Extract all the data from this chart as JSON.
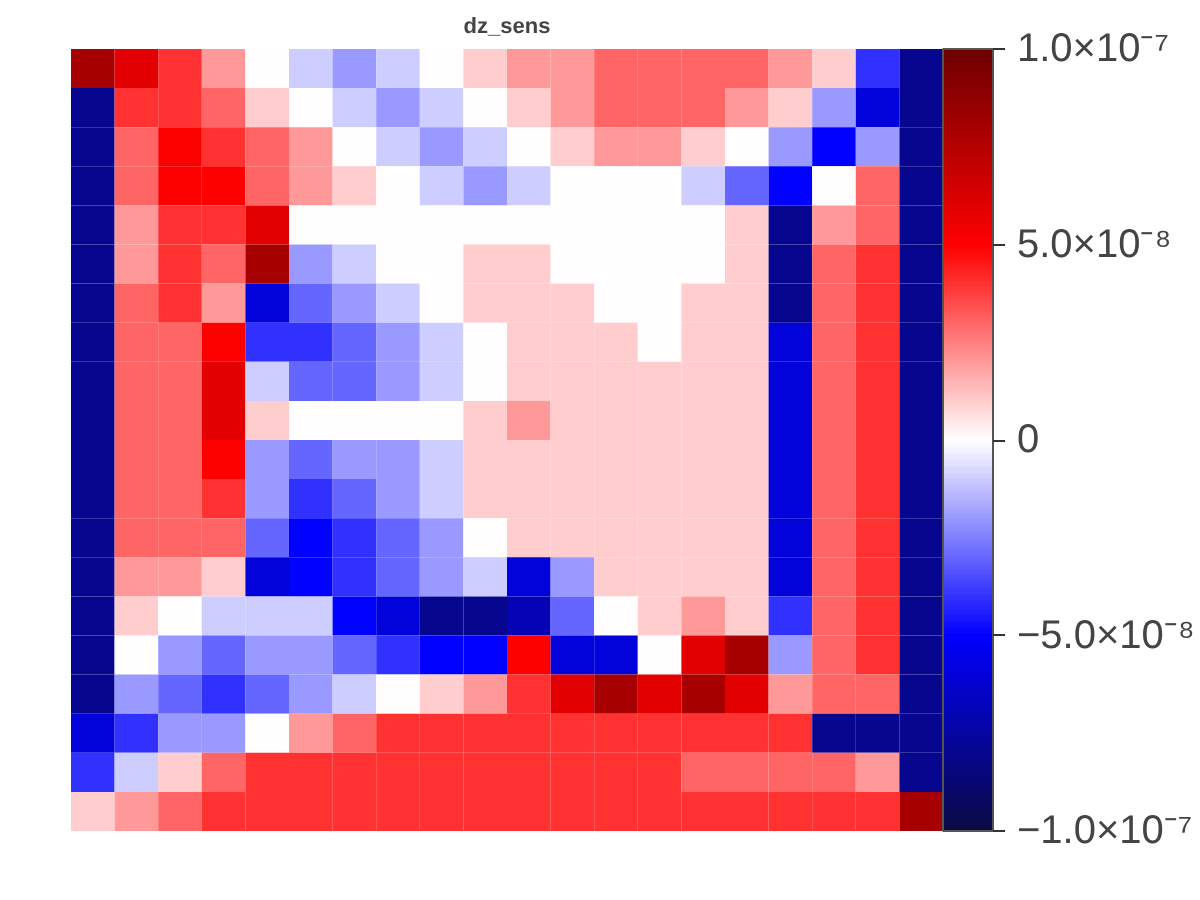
{
  "chart_data": {
    "type": "heatmap",
    "title": "dz_sens",
    "categories": [
      null,
      null,
      null,
      null,
      null,
      null,
      null,
      null,
      null,
      null,
      null,
      null,
      null,
      null,
      null,
      null,
      null,
      null,
      null,
      null
    ],
    "y_categories": [
      null,
      null,
      null,
      null,
      null,
      null,
      null,
      null,
      null,
      null,
      null,
      null,
      null,
      null,
      null,
      null,
      null,
      null,
      null,
      null
    ],
    "clim": [
      -1e-07,
      1e-07
    ],
    "cticks": [
      {
        "value": -1e-07,
        "label": "−1.0×10⁻⁷"
      },
      {
        "value": -5e-08,
        "label": "−5.0×10⁻⁸"
      },
      0,
      {
        "value": 5e-08,
        "label": "5.0×10⁻⁸"
      },
      {
        "value": 1e-07,
        "label": "1.0×10⁻⁷"
      }
    ],
    "cells": [
      [
        8e-08,
        6e-08,
        4e-08,
        2e-08,
        0,
        -1e-08,
        -2e-08,
        -1e-08,
        0,
        1e-08,
        2e-08,
        2e-08,
        3e-08,
        3e-08,
        3e-08,
        3e-08,
        2e-08,
        1e-08,
        -4e-08,
        -8e-08
      ],
      [
        -8e-08,
        4e-08,
        4e-08,
        3e-08,
        1e-08,
        0,
        -1e-08,
        -2e-08,
        -1e-08,
        0,
        1e-08,
        2e-08,
        3e-08,
        3e-08,
        3e-08,
        2e-08,
        1e-08,
        -2e-08,
        -6e-08,
        -8e-08
      ],
      [
        -8e-08,
        3e-08,
        5e-08,
        4e-08,
        3e-08,
        2e-08,
        0,
        -1e-08,
        -2e-08,
        -1e-08,
        0,
        1e-08,
        2e-08,
        2e-08,
        1e-08,
        0,
        -2e-08,
        -5e-08,
        -2e-08,
        -8e-08
      ],
      [
        -8e-08,
        3e-08,
        5e-08,
        5e-08,
        3e-08,
        2e-08,
        1e-08,
        0,
        -1e-08,
        -2e-08,
        -1e-08,
        0,
        0,
        0,
        -1e-08,
        -3e-08,
        -5e-08,
        0,
        3e-08,
        -8e-08
      ],
      [
        -8e-08,
        2e-08,
        4e-08,
        4e-08,
        6e-08,
        0,
        0,
        0,
        0,
        0,
        0,
        0,
        0,
        0,
        0,
        1e-08,
        -8e-08,
        2e-08,
        3e-08,
        -8e-08
      ],
      [
        -8e-08,
        2e-08,
        4e-08,
        3e-08,
        8e-08,
        -2e-08,
        -1e-08,
        0,
        0,
        1e-08,
        1e-08,
        0,
        0,
        0,
        0,
        1e-08,
        -8e-08,
        3e-08,
        4e-08,
        -8e-08
      ],
      [
        -8e-08,
        3e-08,
        4e-08,
        2e-08,
        -6e-08,
        -3e-08,
        -2e-08,
        -1e-08,
        0,
        1e-08,
        1e-08,
        1e-08,
        0,
        0,
        1e-08,
        1e-08,
        -8e-08,
        3e-08,
        4e-08,
        -8e-08
      ],
      [
        -8e-08,
        3e-08,
        3e-08,
        5e-08,
        -4e-08,
        -4e-08,
        -3e-08,
        -2e-08,
        -1e-08,
        0,
        1e-08,
        1e-08,
        1e-08,
        0,
        1e-08,
        1e-08,
        -6e-08,
        3e-08,
        4e-08,
        -8e-08
      ],
      [
        -8e-08,
        3e-08,
        3e-08,
        6e-08,
        -1e-08,
        -3e-08,
        -3e-08,
        -2e-08,
        -1e-08,
        0,
        1e-08,
        1e-08,
        1e-08,
        1e-08,
        1e-08,
        1e-08,
        -6e-08,
        3e-08,
        4e-08,
        -8e-08
      ],
      [
        -8e-08,
        3e-08,
        3e-08,
        6e-08,
        1e-08,
        0,
        0,
        0,
        0,
        1e-08,
        2e-08,
        1e-08,
        1e-08,
        1e-08,
        1e-08,
        1e-08,
        -6e-08,
        3e-08,
        4e-08,
        -8e-08
      ],
      [
        -8e-08,
        3e-08,
        3e-08,
        5e-08,
        -2e-08,
        -3e-08,
        -2e-08,
        -2e-08,
        -1e-08,
        1e-08,
        1e-08,
        1e-08,
        1e-08,
        1e-08,
        1e-08,
        1e-08,
        -6e-08,
        3e-08,
        4e-08,
        -8e-08
      ],
      [
        -8e-08,
        3e-08,
        3e-08,
        4e-08,
        -2e-08,
        -4e-08,
        -3e-08,
        -2e-08,
        -1e-08,
        1e-08,
        1e-08,
        1e-08,
        1e-08,
        1e-08,
        1e-08,
        1e-08,
        -6e-08,
        3e-08,
        4e-08,
        -8e-08
      ],
      [
        -8e-08,
        3e-08,
        3e-08,
        3e-08,
        -3e-08,
        -5e-08,
        -4e-08,
        -3e-08,
        -2e-08,
        0,
        1e-08,
        1e-08,
        1e-08,
        1e-08,
        1e-08,
        1e-08,
        -6e-08,
        3e-08,
        4e-08,
        -8e-08
      ],
      [
        -8e-08,
        2e-08,
        2e-08,
        1e-08,
        -6e-08,
        -5e-08,
        -4e-08,
        -3e-08,
        -2e-08,
        -1e-08,
        -6e-08,
        -2e-08,
        1e-08,
        1e-08,
        1e-08,
        1e-08,
        -6e-08,
        3e-08,
        4e-08,
        -8e-08
      ],
      [
        -8e-08,
        1e-08,
        0,
        -1e-08,
        -1e-08,
        -1e-08,
        -5e-08,
        -6e-08,
        -8e-08,
        -8e-08,
        -7e-08,
        -3e-08,
        0,
        1e-08,
        2e-08,
        1e-08,
        -4e-08,
        3e-08,
        4e-08,
        -8e-08
      ],
      [
        -8e-08,
        0,
        -2e-08,
        -3e-08,
        -2e-08,
        -2e-08,
        -3e-08,
        -4e-08,
        -5e-08,
        -5e-08,
        5e-08,
        -6e-08,
        -6e-08,
        0,
        6e-08,
        8e-08,
        -2e-08,
        3e-08,
        4e-08,
        -8e-08
      ],
      [
        -8e-08,
        -2e-08,
        -3e-08,
        -4e-08,
        -3e-08,
        -2e-08,
        -1e-08,
        0,
        1e-08,
        2e-08,
        4e-08,
        6e-08,
        8e-08,
        6e-08,
        8e-08,
        6e-08,
        2e-08,
        3e-08,
        3e-08,
        -8e-08
      ],
      [
        -6e-08,
        -4e-08,
        -2e-08,
        -2e-08,
        0,
        2e-08,
        3e-08,
        4e-08,
        4e-08,
        4e-08,
        4e-08,
        4e-08,
        4e-08,
        4e-08,
        4e-08,
        4e-08,
        4e-08,
        -8e-08,
        -8e-08,
        -8e-08
      ],
      [
        -4e-08,
        -1e-08,
        1e-08,
        3e-08,
        4e-08,
        4e-08,
        4e-08,
        4e-08,
        4e-08,
        4e-08,
        4e-08,
        4e-08,
        4e-08,
        4e-08,
        3e-08,
        3e-08,
        3e-08,
        3e-08,
        2e-08,
        -8e-08
      ],
      [
        1e-08,
        2e-08,
        3e-08,
        4e-08,
        4e-08,
        4e-08,
        4e-08,
        4e-08,
        4e-08,
        4e-08,
        4e-08,
        4e-08,
        4e-08,
        4e-08,
        4e-08,
        4e-08,
        4e-08,
        4e-08,
        4e-08,
        8e-08
      ]
    ]
  }
}
